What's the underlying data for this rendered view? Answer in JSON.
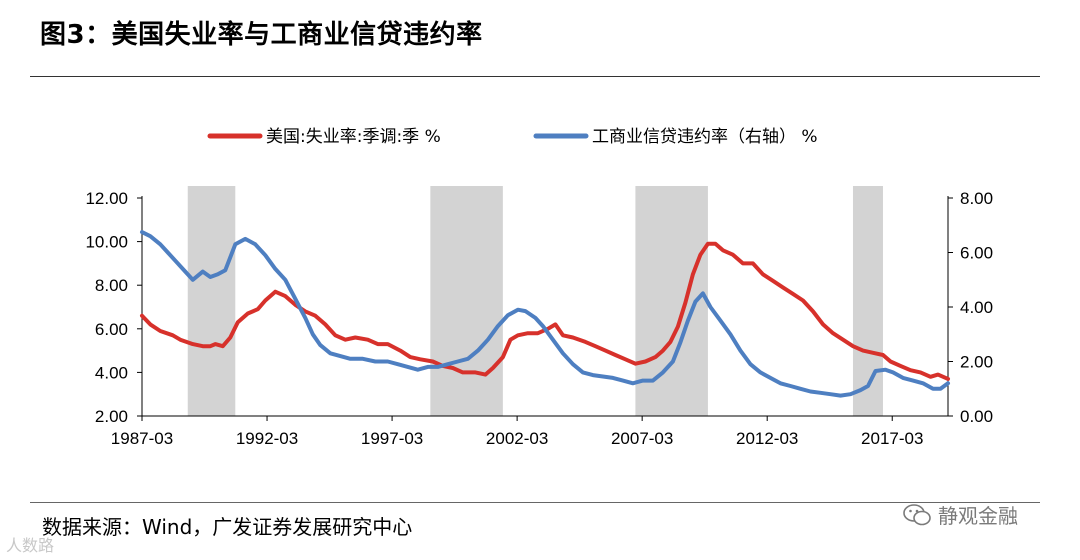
{
  "header": {
    "title": "图3：美国失业率与工商业信贷违约率"
  },
  "footer": {
    "source": "数据来源：Wind，广发证券发展研究中心",
    "badge": "静观金融",
    "watermark": "人数路"
  },
  "chart_data": {
    "type": "line",
    "legend": [
      {
        "name": "美国:失业率:季调:季 %",
        "color": "#d7312b"
      },
      {
        "name": "工商业信贷违约率（右轴） %",
        "color": "#4e7fc1"
      }
    ],
    "x_tick_labels": [
      "1987-03",
      "1992-03",
      "1997-03",
      "2002-03",
      "2007-03",
      "2012-03",
      "2017-03"
    ],
    "x_ticks": [
      1987.17,
      1992.17,
      1997.17,
      2002.17,
      2007.17,
      2012.17,
      2017.17
    ],
    "xlim": [
      1987.17,
      2019.4
    ],
    "left_axis": {
      "ylim": [
        2,
        12
      ],
      "ticks": [
        "2.00",
        "4.00",
        "6.00",
        "8.00",
        "10.00",
        "12.00"
      ]
    },
    "right_axis": {
      "ylim": [
        0,
        8
      ],
      "ticks": [
        "0.00",
        "2.00",
        "4.00",
        "6.00",
        "8.00"
      ]
    },
    "shaded_periods": [
      [
        1989.0,
        1990.9
      ],
      [
        1998.7,
        2001.6
      ],
      [
        2006.9,
        2009.8
      ],
      [
        2015.6,
        2016.8
      ]
    ],
    "series": [
      {
        "name": "美国:失业率:季调:季 %",
        "axis": "left",
        "color": "#d7312b",
        "points": [
          [
            1987.17,
            6.6
          ],
          [
            1987.5,
            6.2
          ],
          [
            1987.9,
            5.9
          ],
          [
            1988.4,
            5.7
          ],
          [
            1988.7,
            5.5
          ],
          [
            1989.2,
            5.3
          ],
          [
            1989.6,
            5.2
          ],
          [
            1989.9,
            5.2
          ],
          [
            1990.1,
            5.3
          ],
          [
            1990.4,
            5.2
          ],
          [
            1990.7,
            5.6
          ],
          [
            1991.0,
            6.3
          ],
          [
            1991.4,
            6.7
          ],
          [
            1991.8,
            6.9
          ],
          [
            1992.1,
            7.3
          ],
          [
            1992.5,
            7.7
          ],
          [
            1992.9,
            7.5
          ],
          [
            1993.3,
            7.1
          ],
          [
            1993.7,
            6.8
          ],
          [
            1994.1,
            6.6
          ],
          [
            1994.5,
            6.2
          ],
          [
            1994.9,
            5.7
          ],
          [
            1995.3,
            5.5
          ],
          [
            1995.7,
            5.6
          ],
          [
            1996.2,
            5.5
          ],
          [
            1996.6,
            5.3
          ],
          [
            1997.0,
            5.3
          ],
          [
            1997.5,
            5.0
          ],
          [
            1997.9,
            4.7
          ],
          [
            1998.3,
            4.6
          ],
          [
            1998.8,
            4.5
          ],
          [
            1999.2,
            4.3
          ],
          [
            1999.6,
            4.2
          ],
          [
            2000.0,
            4.0
          ],
          [
            2000.5,
            4.0
          ],
          [
            2000.9,
            3.9
          ],
          [
            2001.2,
            4.2
          ],
          [
            2001.6,
            4.7
          ],
          [
            2001.9,
            5.5
          ],
          [
            2002.2,
            5.7
          ],
          [
            2002.6,
            5.8
          ],
          [
            2003.0,
            5.8
          ],
          [
            2003.4,
            6.0
          ],
          [
            2003.7,
            6.2
          ],
          [
            2004.0,
            5.7
          ],
          [
            2004.4,
            5.6
          ],
          [
            2004.9,
            5.4
          ],
          [
            2005.3,
            5.2
          ],
          [
            2005.7,
            5.0
          ],
          [
            2006.1,
            4.8
          ],
          [
            2006.5,
            4.6
          ],
          [
            2006.9,
            4.4
          ],
          [
            2007.3,
            4.5
          ],
          [
            2007.7,
            4.7
          ],
          [
            2008.0,
            5.0
          ],
          [
            2008.3,
            5.4
          ],
          [
            2008.6,
            6.1
          ],
          [
            2008.9,
            7.2
          ],
          [
            2009.2,
            8.5
          ],
          [
            2009.5,
            9.4
          ],
          [
            2009.8,
            9.9
          ],
          [
            2010.1,
            9.9
          ],
          [
            2010.4,
            9.6
          ],
          [
            2010.8,
            9.4
          ],
          [
            2011.2,
            9.0
          ],
          [
            2011.6,
            9.0
          ],
          [
            2012.0,
            8.5
          ],
          [
            2012.4,
            8.2
          ],
          [
            2012.8,
            7.9
          ],
          [
            2013.2,
            7.6
          ],
          [
            2013.6,
            7.3
          ],
          [
            2014.0,
            6.8
          ],
          [
            2014.4,
            6.2
          ],
          [
            2014.8,
            5.8
          ],
          [
            2015.2,
            5.5
          ],
          [
            2015.6,
            5.2
          ],
          [
            2016.0,
            5.0
          ],
          [
            2016.4,
            4.9
          ],
          [
            2016.8,
            4.8
          ],
          [
            2017.1,
            4.5
          ],
          [
            2017.5,
            4.3
          ],
          [
            2017.9,
            4.1
          ],
          [
            2018.3,
            4.0
          ],
          [
            2018.7,
            3.8
          ],
          [
            2019.0,
            3.9
          ],
          [
            2019.4,
            3.7
          ]
        ]
      },
      {
        "name": "工商业信贷违约率（右轴） %",
        "axis": "right",
        "color": "#4e7fc1",
        "points": [
          [
            1987.17,
            6.75
          ],
          [
            1987.5,
            6.6
          ],
          [
            1987.9,
            6.3
          ],
          [
            1988.2,
            6.0
          ],
          [
            1988.5,
            5.7
          ],
          [
            1988.9,
            5.3
          ],
          [
            1989.2,
            5.0
          ],
          [
            1989.6,
            5.3
          ],
          [
            1989.9,
            5.1
          ],
          [
            1990.2,
            5.2
          ],
          [
            1990.5,
            5.35
          ],
          [
            1990.9,
            6.3
          ],
          [
            1991.3,
            6.5
          ],
          [
            1991.7,
            6.3
          ],
          [
            1992.1,
            5.9
          ],
          [
            1992.5,
            5.4
          ],
          [
            1992.9,
            5.0
          ],
          [
            1993.3,
            4.3
          ],
          [
            1993.7,
            3.6
          ],
          [
            1994.0,
            3.0
          ],
          [
            1994.3,
            2.6
          ],
          [
            1994.7,
            2.3
          ],
          [
            1995.1,
            2.2
          ],
          [
            1995.5,
            2.1
          ],
          [
            1996.0,
            2.1
          ],
          [
            1996.5,
            2.0
          ],
          [
            1997.0,
            2.0
          ],
          [
            1997.4,
            1.9
          ],
          [
            1997.8,
            1.8
          ],
          [
            1998.2,
            1.7
          ],
          [
            1998.6,
            1.8
          ],
          [
            1999.0,
            1.8
          ],
          [
            1999.4,
            1.9
          ],
          [
            1999.8,
            2.0
          ],
          [
            2000.2,
            2.1
          ],
          [
            2000.6,
            2.4
          ],
          [
            2001.0,
            2.8
          ],
          [
            2001.4,
            3.3
          ],
          [
            2001.8,
            3.7
          ],
          [
            2002.2,
            3.9
          ],
          [
            2002.5,
            3.85
          ],
          [
            2002.9,
            3.6
          ],
          [
            2003.2,
            3.3
          ],
          [
            2003.6,
            2.8
          ],
          [
            2004.0,
            2.3
          ],
          [
            2004.4,
            1.9
          ],
          [
            2004.8,
            1.6
          ],
          [
            2005.2,
            1.5
          ],
          [
            2005.6,
            1.45
          ],
          [
            2006.0,
            1.4
          ],
          [
            2006.4,
            1.3
          ],
          [
            2006.8,
            1.2
          ],
          [
            2007.2,
            1.3
          ],
          [
            2007.6,
            1.3
          ],
          [
            2008.0,
            1.6
          ],
          [
            2008.4,
            2.0
          ],
          [
            2008.7,
            2.7
          ],
          [
            2009.0,
            3.5
          ],
          [
            2009.3,
            4.2
          ],
          [
            2009.6,
            4.5
          ],
          [
            2009.9,
            4.0
          ],
          [
            2010.3,
            3.5
          ],
          [
            2010.7,
            3.0
          ],
          [
            2011.1,
            2.4
          ],
          [
            2011.5,
            1.9
          ],
          [
            2011.9,
            1.6
          ],
          [
            2012.3,
            1.4
          ],
          [
            2012.7,
            1.2
          ],
          [
            2013.1,
            1.1
          ],
          [
            2013.5,
            1.0
          ],
          [
            2013.9,
            0.9
          ],
          [
            2014.3,
            0.85
          ],
          [
            2014.7,
            0.8
          ],
          [
            2015.1,
            0.75
          ],
          [
            2015.5,
            0.8
          ],
          [
            2015.9,
            0.95
          ],
          [
            2016.2,
            1.1
          ],
          [
            2016.5,
            1.65
          ],
          [
            2016.9,
            1.7
          ],
          [
            2017.2,
            1.6
          ],
          [
            2017.6,
            1.4
          ],
          [
            2018.0,
            1.3
          ],
          [
            2018.4,
            1.2
          ],
          [
            2018.8,
            1.0
          ],
          [
            2019.1,
            1.0
          ],
          [
            2019.4,
            1.2
          ]
        ]
      }
    ]
  }
}
